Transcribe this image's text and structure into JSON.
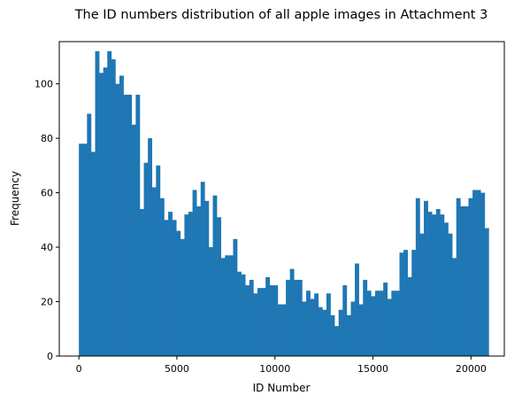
{
  "chart_data": {
    "type": "bar",
    "title": "The ID numbers distribution of all apple images in Attachment 3",
    "xlabel": "ID Number",
    "ylabel": "Frequency",
    "xlim": [
      -1000,
      21700
    ],
    "ylim": [
      0,
      115.5
    ],
    "grid": false,
    "legend": "none",
    "bar_color": "#1f77b4",
    "bin_start": 0,
    "bin_width": 207,
    "x_ticks": [
      0,
      5000,
      10000,
      15000,
      20000
    ],
    "x_tick_labels": [
      "0",
      "5000",
      "10000",
      "15000",
      "20000"
    ],
    "y_ticks": [
      0,
      20,
      40,
      60,
      80,
      100
    ],
    "y_tick_labels": [
      "0",
      "20",
      "40",
      "60",
      "80",
      "100"
    ],
    "values": [
      78,
      78,
      89,
      75,
      112,
      104,
      106,
      112,
      109,
      100,
      103,
      96,
      96,
      85,
      96,
      54,
      71,
      80,
      62,
      70,
      58,
      50,
      53,
      50,
      46,
      43,
      52,
      53,
      61,
      55,
      64,
      57,
      40,
      59,
      51,
      36,
      37,
      37,
      43,
      31,
      30,
      26,
      28,
      23,
      25,
      25,
      29,
      26,
      26,
      19,
      19,
      28,
      32,
      28,
      28,
      20,
      24,
      21,
      23,
      18,
      17,
      23,
      15,
      11,
      17,
      26,
      15,
      20,
      34,
      19,
      28,
      24,
      22,
      24,
      24,
      27,
      21,
      24,
      24,
      38,
      39,
      29,
      39,
      58,
      45,
      57,
      53,
      52,
      54,
      52,
      49,
      45,
      36,
      58,
      55,
      55,
      58,
      61,
      61,
      60,
      47
    ]
  }
}
